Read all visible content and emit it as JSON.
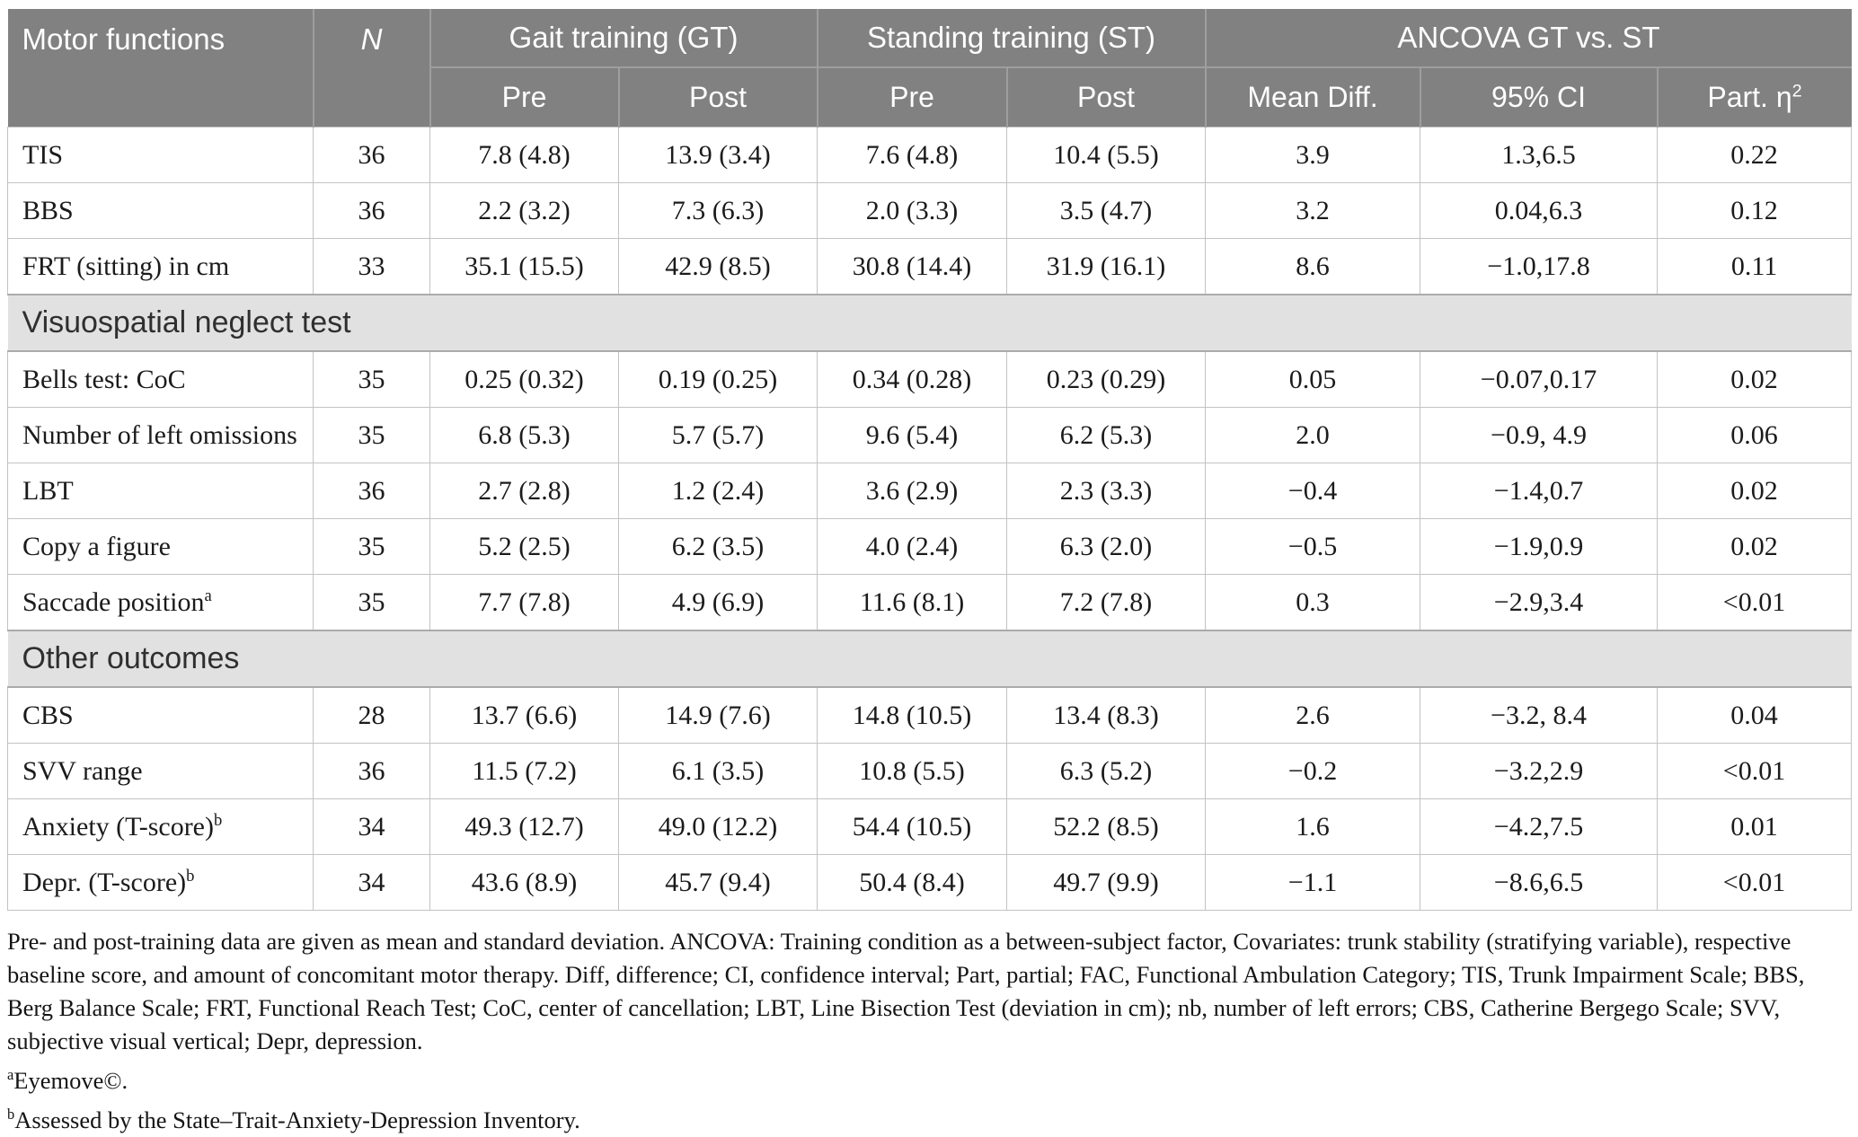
{
  "colors": {
    "header_bg": "#818181",
    "header_text": "#ffffff",
    "header_divider": "#9e9e9e",
    "section_bg": "#e1e1e1",
    "section_border": "#ababab",
    "grid": "#c3c3c3",
    "body_text": "#1b1b1b"
  },
  "table": {
    "header": {
      "motor_functions": "Motor functions",
      "n": "N",
      "groups": [
        {
          "label": "Gait training (GT)",
          "sub": [
            {
              "text": "Pre"
            },
            {
              "text": "Post"
            }
          ]
        },
        {
          "label": "Standing training (ST)",
          "sub": [
            {
              "text": "Pre"
            },
            {
              "text": "Post"
            }
          ]
        },
        {
          "label": "ANCOVA GT vs. ST",
          "sub": [
            {
              "text": "Mean Diff."
            },
            {
              "text": "95% CI"
            },
            {
              "text": "Part. η",
              "sup": "2"
            }
          ]
        }
      ]
    },
    "sections": [
      {
        "title": null,
        "rows": [
          {
            "label": "TIS",
            "n": "36",
            "values": [
              "7.8 (4.8)",
              "13.9 (3.4)",
              "7.6 (4.8)",
              "10.4 (5.5)",
              "3.9",
              "1.3,6.5",
              "0.22"
            ]
          },
          {
            "label": "BBS",
            "n": "36",
            "values": [
              "2.2 (3.2)",
              "7.3 (6.3)",
              "2.0 (3.3)",
              "3.5 (4.7)",
              "3.2",
              "0.04,6.3",
              "0.12"
            ]
          },
          {
            "label": "FRT (sitting) in cm",
            "n": "33",
            "values": [
              "35.1 (15.5)",
              "42.9 (8.5)",
              "30.8 (14.4)",
              "31.9 (16.1)",
              "8.6",
              "−1.0,17.8",
              "0.11"
            ]
          }
        ]
      },
      {
        "title": "Visuospatial neglect test",
        "rows": [
          {
            "label": "Bells test: CoC",
            "n": "35",
            "values": [
              "0.25 (0.32)",
              "0.19 (0.25)",
              "0.34 (0.28)",
              "0.23 (0.29)",
              "0.05",
              "−0.07,0.17",
              "0.02"
            ]
          },
          {
            "label": "Number of left omissions",
            "n": "35",
            "values": [
              "6.8 (5.3)",
              "5.7 (5.7)",
              "9.6 (5.4)",
              "6.2 (5.3)",
              "2.0",
              "−0.9, 4.9",
              "0.06"
            ]
          },
          {
            "label": "LBT",
            "n": "36",
            "values": [
              "2.7 (2.8)",
              "1.2 (2.4)",
              "3.6 (2.9)",
              "2.3 (3.3)",
              "−0.4",
              "−1.4,0.7",
              "0.02"
            ]
          },
          {
            "label": "Copy a figure",
            "n": "35",
            "values": [
              "5.2 (2.5)",
              "6.2 (3.5)",
              "4.0 (2.4)",
              "6.3 (2.0)",
              "−0.5",
              "−1.9,0.9",
              "0.02"
            ]
          },
          {
            "label": "Saccade position",
            "sup": "a",
            "n": "35",
            "values": [
              "7.7 (7.8)",
              "4.9 (6.9)",
              "11.6 (8.1)",
              "7.2 (7.8)",
              "0.3",
              "−2.9,3.4",
              "<0.01"
            ]
          }
        ]
      },
      {
        "title": "Other outcomes",
        "rows": [
          {
            "label": "CBS",
            "n": "28",
            "values": [
              "13.7 (6.6)",
              "14.9 (7.6)",
              "14.8 (10.5)",
              "13.4 (8.3)",
              "2.6",
              "−3.2, 8.4",
              "0.04"
            ]
          },
          {
            "label": "SVV range",
            "n": "36",
            "values": [
              "11.5 (7.2)",
              "6.1 (3.5)",
              "10.8 (5.5)",
              "6.3 (5.2)",
              "−0.2",
              "−3.2,2.9",
              "<0.01"
            ]
          },
          {
            "label": "Anxiety (T-score)",
            "sup": "b",
            "n": "34",
            "values": [
              "49.3 (12.7)",
              "49.0 (12.2)",
              "54.4 (10.5)",
              "52.2 (8.5)",
              "1.6",
              "−4.2,7.5",
              "0.01"
            ]
          },
          {
            "label": "Depr. (T-score)",
            "sup": "b",
            "n": "34",
            "values": [
              "43.6 (8.9)",
              "45.7 (9.4)",
              "50.4 (8.4)",
              "49.7 (9.9)",
              "−1.1",
              "−8.6,6.5",
              "<0.01"
            ]
          }
        ]
      }
    ]
  },
  "footnotes": {
    "paragraph": "Pre- and post-training data are given as mean and standard deviation. ANCOVA: Training condition as a between-subject factor, Covariates: trunk stability (stratifying variable), respective baseline score, and amount of concomitant motor therapy. Diff, difference; CI, confidence interval; Part, partial; FAC, Functional Ambulation Category; TIS, Trunk Impairment Scale; BBS, Berg Balance Scale; FRT, Functional Reach Test; CoC, center of cancellation; LBT, Line Bisection Test (deviation in cm); nb, number of left errors; CBS, Catherine Bergego Scale; SVV, subjective visual vertical; Depr, depression.",
    "notes": [
      {
        "sup": "a",
        "text": "Eyemove©."
      },
      {
        "sup": "b",
        "text": "Assessed by the State–Trait-Anxiety-Depression Inventory."
      }
    ]
  }
}
